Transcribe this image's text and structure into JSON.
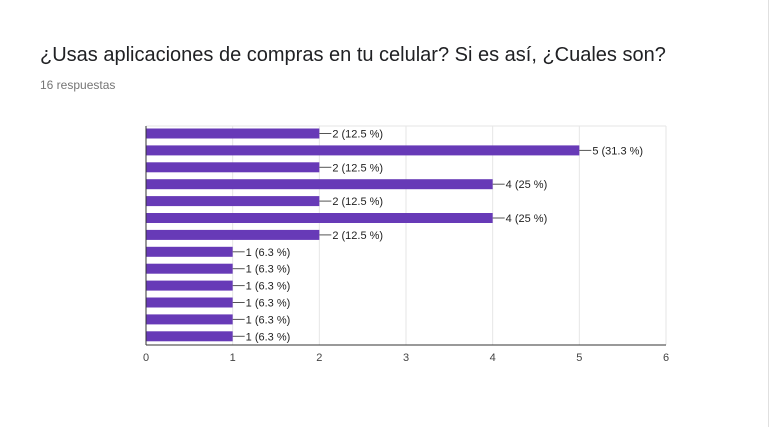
{
  "question": {
    "title": "¿Usas aplicaciones de compras en tu celular? Si es así, ¿Cuales son?",
    "responses": "16 respuestas"
  },
  "colors": {
    "bar": "#673ab7",
    "grid": "#e6e6e6",
    "axis": "#333333"
  },
  "chart_data": {
    "type": "bar",
    "orientation": "horizontal",
    "title": "",
    "xlabel": "",
    "ylabel": "",
    "xlim": [
      0,
      6
    ],
    "x_ticks": [
      "0",
      "1",
      "2",
      "3",
      "4",
      "5",
      "6"
    ],
    "grid": true,
    "values": [
      2,
      5,
      2,
      4,
      2,
      4,
      2,
      1,
      1,
      1,
      1,
      1,
      1
    ],
    "labels": [
      "2 (12.5 %)",
      "5 (31.3 %)",
      "2 (12.5 %)",
      "4 (25 %)",
      "2 (12.5 %)",
      "4 (25 %)",
      "2 (12.5 %)",
      "1 (6.3 %)",
      "1 (6.3 %)",
      "1 (6.3 %)",
      "1 (6.3 %)",
      "1 (6.3 %)",
      "1 (6.3 %)"
    ]
  }
}
